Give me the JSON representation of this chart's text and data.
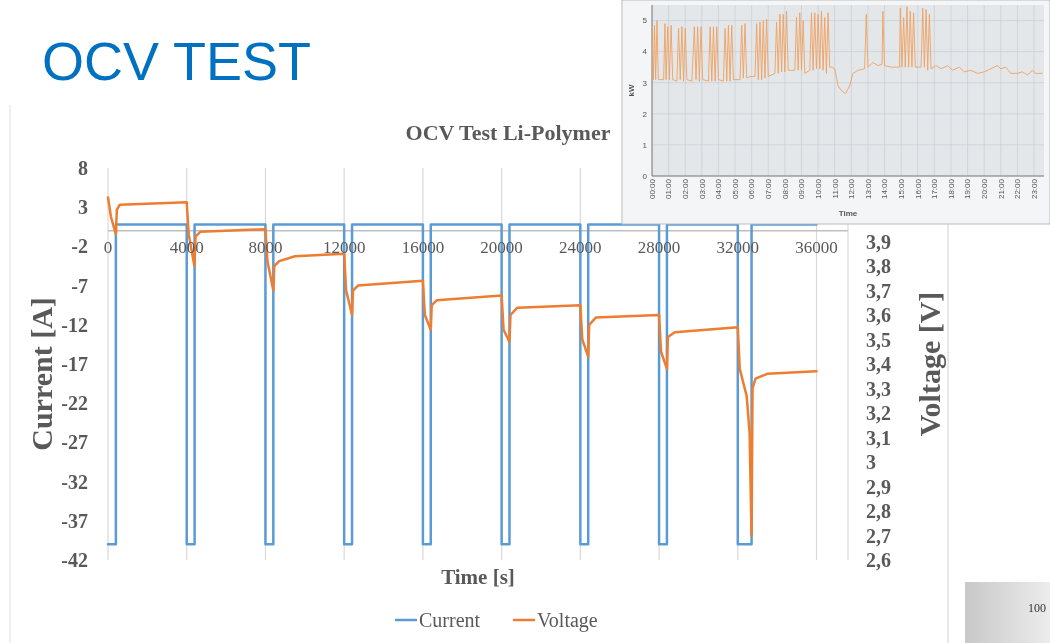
{
  "chart_data": [
    {
      "type": "line",
      "title": "OCV Test Li-Polymer",
      "xlabel": "Time [s]",
      "ylabel": "Current [A]",
      "y2label": "Voltage [V]",
      "xlim": [
        0,
        37600
      ],
      "xticks": [
        0,
        4000,
        8000,
        12000,
        16000,
        20000,
        24000,
        28000,
        32000,
        36000
      ],
      "ylim": [
        -42,
        8
      ],
      "yticks": [
        8,
        3,
        -2,
        -7,
        -12,
        -17,
        -22,
        -27,
        -32,
        -37,
        -42
      ],
      "y2lim": [
        2.6,
        4.2
      ],
      "y2ticks": [
        {
          "value": 2.6,
          "label": "2,6"
        },
        {
          "value": 2.7,
          "label": "2,7"
        },
        {
          "value": 2.8,
          "label": "2,8"
        },
        {
          "value": 2.9,
          "label": "2,9"
        },
        3,
        {
          "value": 3.1,
          "label": "3,1"
        },
        {
          "value": 3.2,
          "label": "3,2"
        },
        {
          "value": 3.3,
          "label": "3,3"
        },
        {
          "value": 3.4,
          "label": "3,4"
        },
        {
          "value": 3.5,
          "label": "3,5"
        },
        {
          "value": 3.6,
          "label": "3,6"
        },
        {
          "value": 3.7,
          "label": "3,7"
        },
        {
          "value": 3.8,
          "label": "3,8"
        },
        {
          "value": 3.9,
          "label": "3,9"
        }
      ],
      "grid": "x",
      "legend": "bottom",
      "series": [
        {
          "name": "Current",
          "color": "#5b9bd5",
          "x": [
            0,
            400,
            400,
            4000,
            4000,
            4400,
            4400,
            8000,
            8000,
            8400,
            8400,
            12000,
            12000,
            12400,
            12400,
            16000,
            16000,
            16400,
            16400,
            20000,
            20000,
            20400,
            20400,
            24000,
            24000,
            24400,
            24400,
            28000,
            28000,
            28400,
            28400,
            32000,
            32000,
            32700,
            32700,
            36000
          ],
          "values": [
            -40,
            -40,
            0.8,
            0.8,
            -40,
            -40,
            0.8,
            0.8,
            -40,
            -40,
            0.8,
            0.8,
            -40,
            -40,
            0.8,
            0.8,
            -40,
            -40,
            0.8,
            0.8,
            -40,
            -40,
            0.8,
            0.8,
            -40,
            -40,
            0.8,
            0.8,
            -40,
            -40,
            0.8,
            0.8,
            -40,
            -40,
            0.8,
            0.8
          ]
        },
        {
          "name": "Voltage",
          "color": "#ed7d31",
          "axis": "y2",
          "x": [
            0,
            150,
            400,
            450,
            600,
            4000,
            4100,
            4390,
            4450,
            4700,
            8000,
            8100,
            8400,
            8450,
            8700,
            9500,
            12000,
            12100,
            12400,
            12450,
            12700,
            16000,
            16100,
            16400,
            16450,
            16700,
            20000,
            20100,
            20400,
            20450,
            20800,
            24000,
            24100,
            24400,
            24450,
            24800,
            28000,
            28100,
            28400,
            28450,
            28800,
            32000,
            32100,
            32450,
            32600,
            32700,
            32750,
            32900,
            33500,
            36000
          ],
          "values": [
            4.08,
            4.0,
            3.93,
            4.03,
            4.05,
            4.06,
            3.93,
            3.8,
            3.92,
            3.94,
            3.95,
            3.82,
            3.7,
            3.8,
            3.82,
            3.84,
            3.85,
            3.7,
            3.6,
            3.7,
            3.72,
            3.74,
            3.6,
            3.54,
            3.64,
            3.66,
            3.68,
            3.54,
            3.49,
            3.6,
            3.63,
            3.64,
            3.5,
            3.43,
            3.56,
            3.59,
            3.6,
            3.45,
            3.38,
            3.51,
            3.53,
            3.55,
            3.38,
            3.27,
            3.12,
            2.7,
            3.3,
            3.34,
            3.36,
            3.37
          ]
        }
      ]
    },
    {
      "type": "line",
      "xlabel": "Time",
      "ylabel": "kW",
      "xlim": [
        0,
        23.6
      ],
      "ylim": [
        0,
        5.5
      ],
      "yticks": [
        0,
        1,
        2,
        3,
        4,
        5
      ],
      "grid": true,
      "xticks": [
        {
          "value": 0,
          "label": "00:00"
        },
        {
          "value": 1,
          "label": "01:00"
        },
        {
          "value": 2,
          "label": "02:00"
        },
        {
          "value": 3,
          "label": "03:00"
        },
        {
          "value": 4,
          "label": "04:00"
        },
        {
          "value": 5,
          "label": "05:00"
        },
        {
          "value": 6,
          "label": "06:00"
        },
        {
          "value": 7,
          "label": "07:00"
        },
        {
          "value": 8,
          "label": "08:00"
        },
        {
          "value": 9,
          "label": "09:00"
        },
        {
          "value": 10,
          "label": "10:00"
        },
        {
          "value": 11,
          "label": "11:00"
        },
        {
          "value": 12,
          "label": "12:00"
        },
        {
          "value": 13,
          "label": "13:00"
        },
        {
          "value": 14,
          "label": "14:00"
        },
        {
          "value": 15,
          "label": "15:00"
        },
        {
          "value": 16,
          "label": "16:00"
        },
        {
          "value": 17,
          "label": "17:00"
        },
        {
          "value": 18,
          "label": "18:00"
        },
        {
          "value": 19,
          "label": "19:00"
        },
        {
          "value": 20,
          "label": "20:00"
        },
        {
          "value": 21,
          "label": "21:00"
        },
        {
          "value": 22,
          "label": "22:00"
        },
        {
          "value": 23,
          "label": "23:00"
        }
      ],
      "series": [
        {
          "color": "#f0a060",
          "x": [
            0,
            0.08,
            0.15,
            0.22,
            0.3,
            0.38,
            0.7,
            0.78,
            0.85,
            0.95,
            1.05,
            1.15,
            1.25,
            1.5,
            1.6,
            1.7,
            1.8,
            1.9,
            2.0,
            2.1,
            2.4,
            2.55,
            2.65,
            2.75,
            2.85,
            2.95,
            3.05,
            3.4,
            3.5,
            3.6,
            3.7,
            3.8,
            3.9,
            4.0,
            4.3,
            4.4,
            4.5,
            4.6,
            4.7,
            4.8,
            4.9,
            5.3,
            5.4,
            5.5,
            5.6,
            5.7,
            5.9,
            6.2,
            6.3,
            6.4,
            6.5,
            6.6,
            6.7,
            6.8,
            6.9,
            7.0,
            7.4,
            7.5,
            7.6,
            7.7,
            7.8,
            7.9,
            8.0,
            8.1,
            8.2,
            8.6,
            8.7,
            8.8,
            8.9,
            9.0,
            9.1,
            9.2,
            9.5,
            9.6,
            9.7,
            9.8,
            9.9,
            10.0,
            10.1,
            10.2,
            10.3,
            10.4,
            10.5,
            10.6,
            10.7,
            10.8,
            11.0,
            11.2,
            11.4,
            11.65,
            11.9,
            12.1,
            12.4,
            12.8,
            12.9,
            13.0,
            13.3,
            13.6,
            13.85,
            13.9,
            14.0,
            14.4,
            14.9,
            14.95,
            15.05,
            15.15,
            15.25,
            15.35,
            15.45,
            15.55,
            15.65,
            15.75,
            15.85,
            16.2,
            16.3,
            16.4,
            16.5,
            16.6,
            16.7,
            16.8,
            17.1,
            17.4,
            17.8,
            18.1,
            18.5,
            18.8,
            19.2,
            19.6,
            20.0,
            20.4,
            20.8,
            21.0,
            21.3,
            21.6,
            22.0,
            22.3,
            22.6,
            22.9,
            23.1,
            23.5
          ],
          "values": [
            4.8,
            3.1,
            4.85,
            3.1,
            5.0,
            3.1,
            3.1,
            4.9,
            3.1,
            4.8,
            3.1,
            4.85,
            3.1,
            3.05,
            4.75,
            3.1,
            4.8,
            3.05,
            4.75,
            3.1,
            3.05,
            4.8,
            3.1,
            4.8,
            3.05,
            4.8,
            3.1,
            3.05,
            4.8,
            3.05,
            4.8,
            3.05,
            4.8,
            3.1,
            3.05,
            4.75,
            3.05,
            4.85,
            3.05,
            4.85,
            3.1,
            3.1,
            4.85,
            3.15,
            4.9,
            3.15,
            3.2,
            3.2,
            4.9,
            3.1,
            4.95,
            3.1,
            5.0,
            3.15,
            5.05,
            3.2,
            3.3,
            4.95,
            3.3,
            5.2,
            3.35,
            5.2,
            3.35,
            5.3,
            3.4,
            3.4,
            5.1,
            3.4,
            5.25,
            3.4,
            5.0,
            3.3,
            3.4,
            5.25,
            3.4,
            5.25,
            3.45,
            5.2,
            3.45,
            5.3,
            3.4,
            5.1,
            3.3,
            5.25,
            3.5,
            3.5,
            3.45,
            2.9,
            2.75,
            2.65,
            2.9,
            3.3,
            3.4,
            3.45,
            5.2,
            3.5,
            3.65,
            3.55,
            3.6,
            5.3,
            3.55,
            3.5,
            3.5,
            5.4,
            3.5,
            5.1,
            3.5,
            5.45,
            3.5,
            5.3,
            3.5,
            5.25,
            3.5,
            3.5,
            5.4,
            3.5,
            5.35,
            3.4,
            5.2,
            3.45,
            3.55,
            3.45,
            3.55,
            3.4,
            3.5,
            3.35,
            3.4,
            3.3,
            3.35,
            3.45,
            3.55,
            3.45,
            3.5,
            3.3,
            3.3,
            3.35,
            3.25,
            3.4,
            3.3,
            3.3
          ]
        }
      ]
    },
    {
      "type": "other",
      "title": "OCV TEST",
      "annotations": [
        "100"
      ]
    }
  ]
}
